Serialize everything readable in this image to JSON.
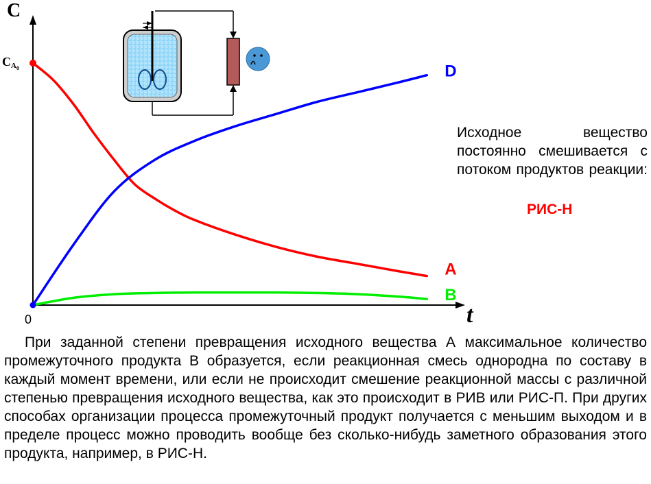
{
  "chart_data": {
    "type": "line",
    "ylabel": "C",
    "xlabel": "t",
    "origin_label": "0",
    "start_label": {
      "main": "C",
      "sub1": "A",
      "sub2": "0"
    },
    "xlim": [
      0,
      10
    ],
    "ylim": [
      0,
      1
    ],
    "series": [
      {
        "name": "A",
        "color": "#ff0000",
        "x": [
          0,
          0.5,
          1,
          1.5,
          2,
          2.5,
          3,
          3.5,
          4,
          5,
          6,
          7,
          8,
          9,
          9.7
        ],
        "y": [
          1.0,
          0.93,
          0.83,
          0.71,
          0.6,
          0.5,
          0.44,
          0.39,
          0.35,
          0.29,
          0.24,
          0.2,
          0.17,
          0.14,
          0.12
        ]
      },
      {
        "name": "B",
        "color": "#00ee00",
        "x": [
          0,
          1,
          2,
          3,
          4,
          5,
          6,
          7,
          8,
          9,
          9.7
        ],
        "y": [
          0.0,
          0.03,
          0.045,
          0.05,
          0.052,
          0.052,
          0.052,
          0.05,
          0.045,
          0.035,
          0.025
        ]
      },
      {
        "name": "D",
        "color": "#0000ff",
        "x": [
          0,
          1,
          2,
          3,
          4,
          5,
          6,
          7,
          8,
          9,
          9.7
        ],
        "y": [
          0.0,
          0.25,
          0.47,
          0.6,
          0.68,
          0.74,
          0.79,
          0.84,
          0.88,
          0.92,
          0.95
        ]
      }
    ]
  },
  "icons": [
    "stirred-reactor-icon",
    "heater-resistor-icon",
    "sad-face-icon"
  ],
  "side_note": {
    "text": "Исходное вещество постоянно смешивается с потоком продуктов реакции:",
    "title": "РИС-Н"
  },
  "body_text": "При заданной степени превращения исходного вещества А максимальное количество промежуточного продукта В образуется, если реакционная смесь однородна по составу в каждый момент времени, или если не происходит смешение реакционной массы с различной степенью превращения исходного вещества, как это происходит в РИВ или РИС-П. При других способах организации процесса промежуточный продукт получается с меньшим выходом и в пределе процесс можно проводить вообще без сколько-нибудь заметного образования этого продукта, например, в РИС-Н."
}
